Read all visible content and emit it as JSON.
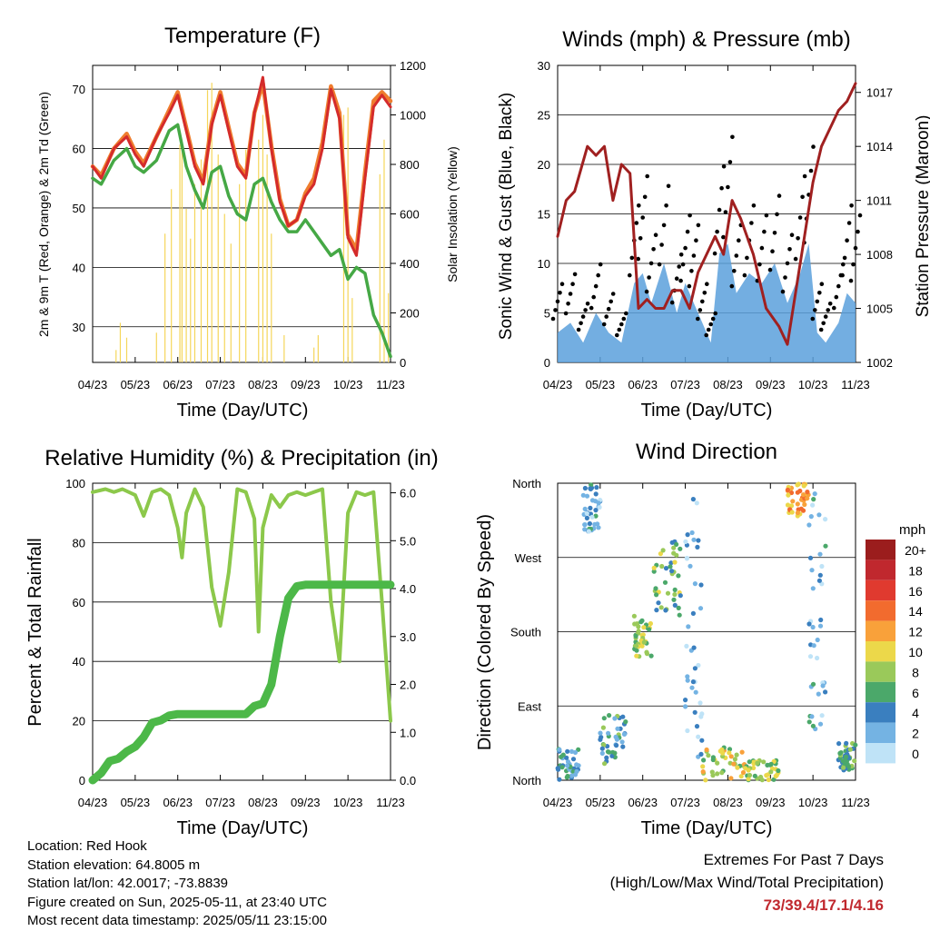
{
  "charts": {
    "temp": {
      "title": "Temperature (F)",
      "ylabel_left": "2m & 9m T (Red, Orange) & 2m Td (Green)",
      "ylabel_right": "Solar Insolation (Yellow)",
      "xlabel": "Time (Day/UTC)"
    },
    "wind": {
      "title": "Winds (mph) & Pressure (mb)",
      "ylabel_left": "Sonic Wind & Gust (Blue, Black)",
      "ylabel_right": "Station Pressure (Maroon)",
      "xlabel": "Time (Day/UTC)"
    },
    "rh": {
      "title": "Relative Humidity (%) & Precipitation (in)",
      "ylabel_left": "Percent & Total Rainfall",
      "xlabel": "Time (Day/UTC)"
    },
    "dir": {
      "title": "Wind Direction",
      "ylabel_left": "Direction (Colored By Speed)",
      "xlabel": "Time (Day/UTC)",
      "legend_title": "mph"
    }
  },
  "footer": {
    "location": "Location: Red Hook",
    "elevation": "Station elevation: 64.8005 m",
    "latlon": "Station lat/lon: 42.0017; -73.8839",
    "created": "Figure created on Sun, 2025-05-11, at 23:40 UTC",
    "recent": "Most recent data timestamp: 2025/05/11 23:15:00"
  },
  "extremes": {
    "heading": "Extremes For Past 7 Days",
    "subheading": "(High/Low/Max Wind/Total Precipitation)",
    "values": "73/39.4/17.1/4.16"
  },
  "chart_data": [
    {
      "type": "line",
      "id": "temperature",
      "x_ticks": [
        "04/23",
        "05/23",
        "06/23",
        "07/23",
        "08/23",
        "09/23",
        "10/23",
        "11/23"
      ],
      "ylim": [
        24,
        74
      ],
      "yticks": [
        30,
        40,
        50,
        60,
        70
      ],
      "y2lim": [
        0,
        1200
      ],
      "y2ticks": [
        0,
        200,
        400,
        600,
        800,
        1000,
        1200
      ],
      "series": [
        {
          "color": "#d42b2b",
          "x": [
            0,
            0.2,
            0.5,
            0.8,
            1.0,
            1.2,
            1.5,
            1.8,
            2.0,
            2.2,
            2.4,
            2.6,
            2.8,
            3.0,
            3.2,
            3.4,
            3.6,
            3.8,
            4.0,
            4.2,
            4.4,
            4.6,
            4.8,
            5.0,
            5.2,
            5.4,
            5.6,
            5.8,
            6.0,
            6.2,
            6.4,
            6.6,
            6.8,
            7.0
          ],
          "values": [
            57,
            55,
            60,
            62,
            59,
            57,
            62,
            66,
            69,
            63,
            57,
            54,
            64,
            69,
            63,
            57,
            55,
            66,
            72,
            60,
            51,
            47,
            48,
            52,
            54,
            60,
            70,
            65,
            45,
            42,
            55,
            67,
            69,
            67
          ]
        },
        {
          "color": "#ef7d2e",
          "x": [
            0,
            0.2,
            0.5,
            0.8,
            1.0,
            1.2,
            1.5,
            1.8,
            2.0,
            2.2,
            2.4,
            2.6,
            2.8,
            3.0,
            3.2,
            3.4,
            3.6,
            3.8,
            4.0,
            4.2,
            4.4,
            4.6,
            4.8,
            5.0,
            5.2,
            5.4,
            5.6,
            5.8,
            6.0,
            6.2,
            6.4,
            6.6,
            6.8,
            7.0
          ],
          "values": [
            57,
            55.5,
            60,
            62.5,
            59.5,
            57.5,
            62,
            66.5,
            69.5,
            63.5,
            57.5,
            54.5,
            64.5,
            69.5,
            63.5,
            57.5,
            55.5,
            66,
            71,
            60.5,
            51.5,
            47,
            48,
            52.5,
            55,
            61,
            70.5,
            66,
            45.5,
            43,
            56,
            68,
            69.5,
            68
          ]
        },
        {
          "color": "#45a845",
          "x": [
            0,
            0.2,
            0.5,
            0.8,
            1.0,
            1.2,
            1.5,
            1.8,
            2.0,
            2.2,
            2.4,
            2.6,
            2.8,
            3.0,
            3.2,
            3.4,
            3.6,
            3.8,
            4.0,
            4.2,
            4.4,
            4.6,
            4.8,
            5.0,
            5.2,
            5.4,
            5.6,
            5.8,
            6.0,
            6.2,
            6.4,
            6.6,
            6.8,
            7.0
          ],
          "values": [
            55,
            54,
            58,
            60,
            57,
            56,
            58,
            63,
            64,
            57,
            53,
            50,
            56,
            57,
            52,
            49,
            48,
            54,
            55,
            51,
            48,
            46,
            46,
            48,
            46,
            44,
            42,
            43,
            38,
            40,
            39,
            32,
            29,
            25
          ]
        },
        {
          "color": "#f5d65a",
          "axis": "right",
          "x": [
            0.55,
            0.65,
            0.8,
            1.5,
            1.7,
            1.85,
            2.05,
            2.1,
            2.2,
            2.3,
            2.4,
            2.55,
            2.7,
            2.8,
            2.95,
            3.1,
            3.25,
            3.45,
            3.6,
            3.9,
            4.0,
            4.1,
            4.2,
            4.5,
            5.2,
            5.3,
            5.9,
            6.0,
            6.1,
            6.75,
            6.85,
            6.95
          ],
          "values": [
            50,
            160,
            100,
            120,
            520,
            700,
            880,
            900,
            620,
            500,
            720,
            820,
            1100,
            1130,
            840,
            600,
            480,
            720,
            860,
            900,
            1000,
            840,
            520,
            110,
            60,
            110,
            1000,
            1030,
            260,
            760,
            900,
            280
          ]
        }
      ]
    },
    {
      "type": "line",
      "id": "winds",
      "x_ticks": [
        "04/23",
        "05/23",
        "06/23",
        "07/23",
        "08/23",
        "09/23",
        "10/23",
        "11/23"
      ],
      "ylim": [
        0,
        30
      ],
      "yticks": [
        0,
        5,
        10,
        15,
        20,
        25,
        30
      ],
      "y2lim": [
        1002,
        1018.5
      ],
      "y2ticks": [
        1002,
        1005,
        1008,
        1011,
        1014,
        1017
      ],
      "series": [
        {
          "color": "#5aa0dc",
          "x": [
            0,
            0.3,
            0.6,
            0.9,
            1.2,
            1.5,
            1.8,
            2.0,
            2.2,
            2.5,
            2.8,
            3.0,
            3.2,
            3.4,
            3.6,
            3.8,
            4.0,
            4.2,
            4.5,
            4.8,
            5.1,
            5.4,
            5.7,
            5.9,
            6.1,
            6.3,
            6.6,
            6.8,
            7.0
          ],
          "values": [
            3,
            4,
            2,
            5,
            3,
            2,
            8,
            9,
            6,
            10,
            5,
            8,
            6,
            4,
            2,
            11,
            12,
            7,
            9,
            8,
            10,
            6,
            9,
            12,
            3,
            2,
            4,
            7,
            6
          ]
        },
        {
          "color": "#000000",
          "x": [
            0,
            0.3,
            0.6,
            0.9,
            1.2,
            1.5,
            1.8,
            2.0,
            2.2,
            2.5,
            2.8,
            3.0,
            3.2,
            3.4,
            3.6,
            3.8,
            4.0,
            4.2,
            4.5,
            4.8,
            5.1,
            5.4,
            5.7,
            5.9,
            6.1,
            6.3,
            6.6,
            6.8,
            7.0
          ],
          "values": [
            8,
            9,
            6,
            10,
            7,
            5,
            16,
            19,
            13,
            18,
            11,
            15,
            14,
            8,
            5,
            20,
            23,
            14,
            16,
            15,
            17,
            13,
            19,
            22,
            8,
            6,
            10,
            16,
            15
          ]
        },
        {
          "color": "#a02020",
          "axis": "right",
          "x": [
            0,
            0.2,
            0.4,
            0.7,
            0.9,
            1.1,
            1.3,
            1.5,
            1.7,
            1.9,
            2.1,
            2.3,
            2.5,
            2.7,
            2.9,
            3.1,
            3.3,
            3.5,
            3.7,
            3.9,
            4.1,
            4.3,
            4.6,
            4.9,
            5.2,
            5.4,
            5.6,
            5.8,
            6.0,
            6.2,
            6.4,
            6.6,
            6.8,
            7.0
          ],
          "values": [
            1009,
            1011,
            1011.5,
            1014,
            1013.5,
            1014,
            1011,
            1013,
            1012.5,
            1005,
            1005.5,
            1005,
            1005,
            1006,
            1006,
            1005,
            1007,
            1008,
            1009,
            1008,
            1011,
            1010,
            1008,
            1005,
            1004,
            1003,
            1006,
            1009,
            1012,
            1014,
            1015,
            1016,
            1016.5,
            1017.5
          ]
        }
      ]
    },
    {
      "type": "line",
      "id": "humidity_precip",
      "x_ticks": [
        "04/23",
        "05/23",
        "06/23",
        "07/23",
        "08/23",
        "09/23",
        "10/23",
        "11/23"
      ],
      "ylim": [
        0,
        100
      ],
      "yticks": [
        0,
        20,
        40,
        60,
        80,
        100
      ],
      "y2lim": [
        0,
        6.2
      ],
      "y2ticks": [
        0.0,
        1.0,
        2.0,
        3.0,
        4.0,
        5.0,
        6.0
      ],
      "series": [
        {
          "color": "#8cc84b",
          "x": [
            0,
            0.3,
            0.5,
            0.7,
            1.0,
            1.2,
            1.4,
            1.6,
            1.8,
            2.0,
            2.1,
            2.2,
            2.4,
            2.6,
            2.8,
            3.0,
            3.2,
            3.4,
            3.6,
            3.8,
            3.9,
            4.0,
            4.2,
            4.4,
            4.6,
            4.8,
            5.0,
            5.2,
            5.4,
            5.6,
            5.8,
            6.0,
            6.2,
            6.4,
            6.6,
            6.8,
            7.0
          ],
          "values": [
            97,
            98,
            97,
            98,
            96,
            89,
            97,
            98,
            96,
            85,
            75,
            90,
            98,
            92,
            65,
            52,
            70,
            98,
            97,
            88,
            50,
            85,
            96,
            92,
            96,
            97,
            96,
            97,
            98,
            60,
            40,
            90,
            97,
            96,
            97,
            60,
            20
          ]
        },
        {
          "color": "#4cb848",
          "axis": "right",
          "x": [
            0,
            0.2,
            0.4,
            0.6,
            0.8,
            1.0,
            1.2,
            1.4,
            1.6,
            1.8,
            2.0,
            2.2,
            2.4,
            2.6,
            2.8,
            3.0,
            3.2,
            3.4,
            3.6,
            3.8,
            4.0,
            4.2,
            4.4,
            4.6,
            4.8,
            5.0,
            5.2,
            5.4,
            5.6,
            5.8,
            6.0,
            6.2,
            6.4,
            6.6,
            6.8,
            7.0
          ],
          "values": [
            0,
            0.15,
            0.4,
            0.45,
            0.6,
            0.7,
            0.9,
            1.2,
            1.25,
            1.35,
            1.38,
            1.38,
            1.38,
            1.38,
            1.38,
            1.38,
            1.38,
            1.38,
            1.38,
            1.55,
            1.6,
            2.0,
            3.0,
            3.8,
            4.05,
            4.08,
            4.08,
            4.08,
            4.08,
            4.08,
            4.08,
            4.08,
            4.08,
            4.08,
            4.08,
            4.08
          ]
        }
      ]
    },
    {
      "type": "scatter",
      "id": "wind_direction",
      "x_ticks": [
        "04/23",
        "05/23",
        "06/23",
        "07/23",
        "08/23",
        "09/23",
        "10/23",
        "11/23"
      ],
      "ylim": [
        0,
        360
      ],
      "ytick_labels": [
        "North",
        "East",
        "South",
        "West",
        "North"
      ],
      "legend": {
        "title": "mph",
        "labels": [
          "20+",
          "18",
          "16",
          "14",
          "12",
          "10",
          "8",
          "6",
          "4",
          "2",
          "0"
        ],
        "colors": [
          "#9b1d1d",
          "#c0282e",
          "#e03a2f",
          "#f26b2e",
          "#f9a13a",
          "#ecd84a",
          "#9ac95a",
          "#4ba86a",
          "#3a7fbf",
          "#74b3e3",
          "#bfe3f7"
        ]
      }
    }
  ]
}
